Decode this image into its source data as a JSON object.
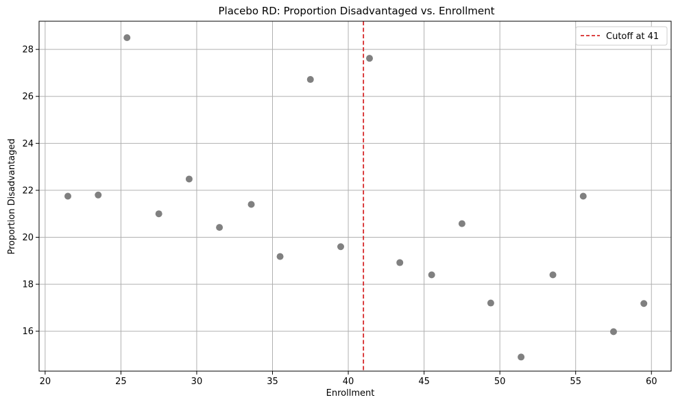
{
  "chart_data": {
    "type": "scatter",
    "title": "Placebo RD: Proportion Disadvantaged vs. Enrollment",
    "xlabel": "Enrollment",
    "ylabel": "Proportion Disadvantaged",
    "xlim": [
      19.6,
      61.3
    ],
    "ylim": [
      14.3,
      29.2
    ],
    "xticks": [
      20,
      25,
      30,
      35,
      40,
      45,
      50,
      55,
      60
    ],
    "yticks": [
      16,
      18,
      20,
      22,
      24,
      26,
      28
    ],
    "grid": true,
    "legend_position": "top-right",
    "series": [
      {
        "color": "#808080",
        "x": [
          21.5,
          23.5,
          25.4,
          27.5,
          29.5,
          31.5,
          33.6,
          35.5,
          37.5,
          39.5,
          41.4,
          43.4,
          45.5,
          47.5,
          49.4,
          51.4,
          53.5,
          55.5,
          57.5,
          59.5
        ],
        "y": [
          21.75,
          21.8,
          28.5,
          21.0,
          22.48,
          20.42,
          21.4,
          19.18,
          26.72,
          19.6,
          27.62,
          18.92,
          18.4,
          20.58,
          17.2,
          14.9,
          18.4,
          21.75,
          15.98,
          17.18
        ]
      }
    ],
    "reference_line": {
      "x": 41,
      "color": "#d62728",
      "style": "dashed",
      "label": "Cutoff at 41"
    }
  }
}
